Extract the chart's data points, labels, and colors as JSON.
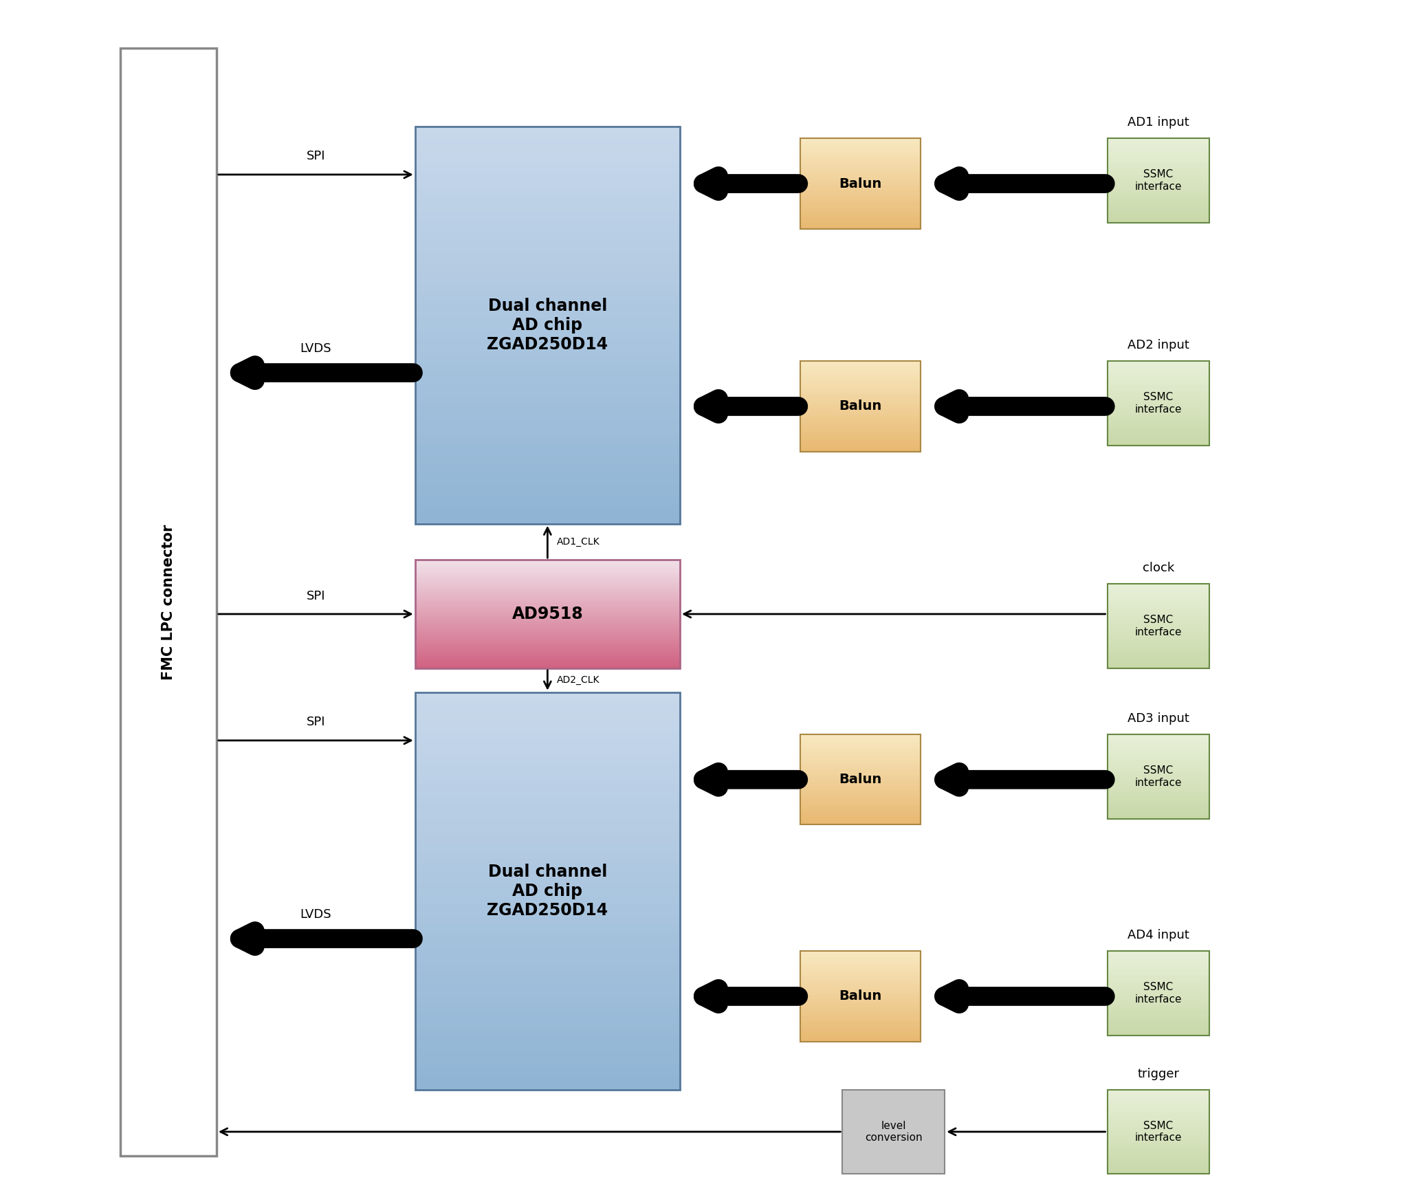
{
  "fig_width": 20.48,
  "fig_height": 17.51,
  "bg_color": "#ffffff",
  "fmc_connector_label": "FMC LPC connector",
  "ad_chip_label": "Dual channel\nAD chip\nZGAD250D14",
  "ad9518_label": "AD9518",
  "balun_label": "Balun",
  "ssmc_label": "SSMC\ninterface",
  "level_conv_label": "level\nconversion",
  "ad_chip_color_top": "#c8d8eb",
  "ad_chip_color_bot": "#8fb4d4",
  "ad9518_color_top": "#f0e0e8",
  "ad9518_color_bot": "#d06080",
  "balun_color_top": "#f8e8c0",
  "balun_color_bot": "#e8b870",
  "ssmc_color_top": "#e8f0d8",
  "ssmc_color_bot": "#c8d8a8",
  "level_conv_color": "#c8c8c8",
  "fmc_box_edge": "#888888",
  "arrow_color": "#000000",
  "thin_lw": 2.0,
  "fat_lw": 20,
  "fat_mutation": 40,
  "thin_mutation": 18,
  "label_SPI": "SPI",
  "label_LVDS": "LVDS",
  "label_AD1_CLK": "AD1_CLK",
  "label_AD2_CLK": "AD2_CLK",
  "label_AD1": "AD1 input",
  "label_AD2": "AD2 input",
  "label_clock": "clock",
  "label_AD3": "AD3 input",
  "label_AD4": "AD4 input",
  "label_trigger": "trigger"
}
